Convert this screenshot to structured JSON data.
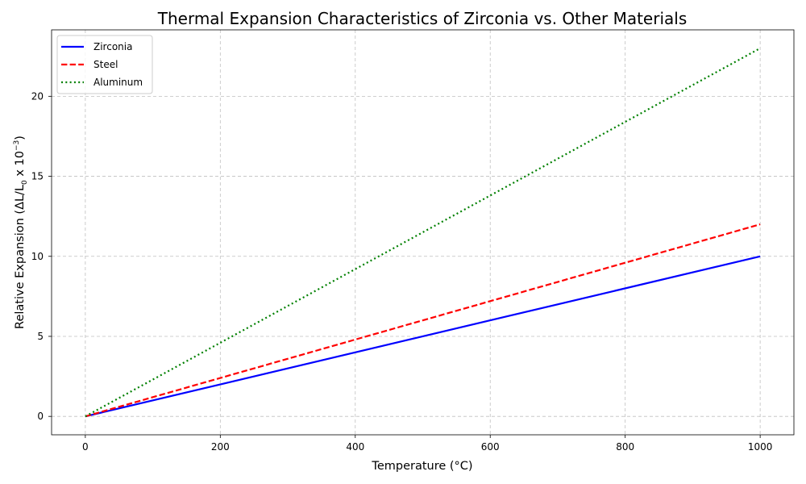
{
  "chart_data": {
    "type": "line",
    "title": "Thermal Expansion Characteristics of Zirconia vs. Other Materials",
    "xlabel": "Temperature (°C)",
    "ylabel_parts": [
      "Relative Expansion (ΔL/L",
      "0",
      " x 10",
      "−3",
      ")"
    ],
    "xlim": [
      -50,
      1050
    ],
    "ylim": [
      -1.15,
      24.15
    ],
    "x_ticks": [
      0,
      200,
      400,
      600,
      800,
      1000
    ],
    "y_ticks": [
      0,
      5,
      10,
      15,
      20
    ],
    "grid": true,
    "legend_position": "top-left",
    "series": [
      {
        "name": "Zirconia",
        "color": "#0000ff",
        "style": "solid",
        "x": [
          0,
          1000
        ],
        "y": [
          0,
          10
        ]
      },
      {
        "name": "Steel",
        "color": "#ff0000",
        "style": "dashed",
        "x": [
          0,
          1000
        ],
        "y": [
          0,
          12
        ]
      },
      {
        "name": "Aluminum",
        "color": "#008000",
        "style": "dotted",
        "x": [
          0,
          1000
        ],
        "y": [
          0,
          23
        ]
      }
    ]
  }
}
